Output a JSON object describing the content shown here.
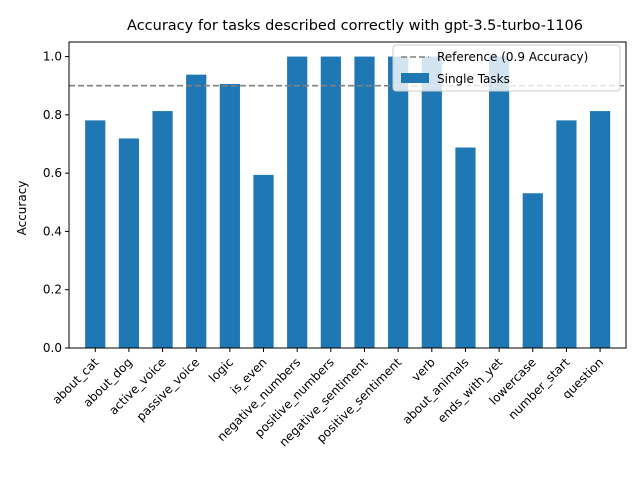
{
  "chart_data": {
    "type": "bar",
    "title": "Accuracy for tasks described correctly with gpt-3.5-turbo-1106",
    "xlabel": "",
    "ylabel": "Accuracy",
    "ylim": [
      0.0,
      1.05
    ],
    "yticks": [
      "0.0",
      "0.2",
      "0.4",
      "0.6",
      "0.8",
      "1.0"
    ],
    "categories": [
      "about_cat",
      "about_dog",
      "active_voice",
      "passive_voice",
      "logic",
      "is_even",
      "negative_numbers",
      "positive_numbers",
      "negative_sentiment",
      "positive_sentiment",
      "verb",
      "about_animals",
      "ends_with_yet",
      "lowercase",
      "number_start",
      "question"
    ],
    "series": [
      {
        "name": "Single Tasks",
        "color": "#1f77b4",
        "values": [
          0.781,
          0.719,
          0.813,
          0.938,
          0.906,
          0.594,
          1.0,
          1.0,
          1.0,
          1.0,
          1.0,
          0.688,
          1.0,
          0.531,
          0.781,
          0.813
        ]
      }
    ],
    "reference": {
      "name": "Reference (0.9 Accuracy)",
      "value": 0.9,
      "color": "#808080",
      "style": "dashed"
    },
    "grid": false,
    "legend_position": "top-right"
  }
}
